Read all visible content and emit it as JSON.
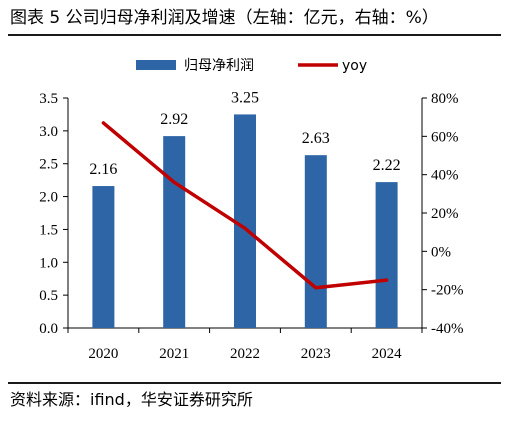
{
  "title": "图表 5  公司归母净利润及增速（左轴：亿元，右轴：%）",
  "source": "资料来源：ifind，华安证券研究所",
  "chart_data": {
    "type": "bar",
    "categories": [
      "2020",
      "2021",
      "2022",
      "2023",
      "2024"
    ],
    "series": [
      {
        "name": "归母净利润",
        "type": "bar",
        "axis": "left",
        "values": [
          2.16,
          2.92,
          3.25,
          2.63,
          2.22
        ],
        "color": "#2e65a6"
      },
      {
        "name": "yoy",
        "type": "line",
        "axis": "right",
        "values": [
          67,
          36,
          12,
          -19,
          -15
        ],
        "color": "#c00000"
      }
    ],
    "data_labels": [
      "2.16",
      "2.92",
      "3.25",
      "2.63",
      "2.22"
    ],
    "left_axis": {
      "ylim": [
        0,
        3.5
      ],
      "ticks": [
        "0.0",
        "0.5",
        "1.0",
        "1.5",
        "2.0",
        "2.5",
        "3.0",
        "3.5"
      ]
    },
    "right_axis": {
      "ylim": [
        -40,
        80
      ],
      "ticks": [
        "-40%",
        "-20%",
        "0%",
        "20%",
        "40%",
        "60%",
        "80%"
      ]
    },
    "legend_position": "top",
    "grid": false
  }
}
